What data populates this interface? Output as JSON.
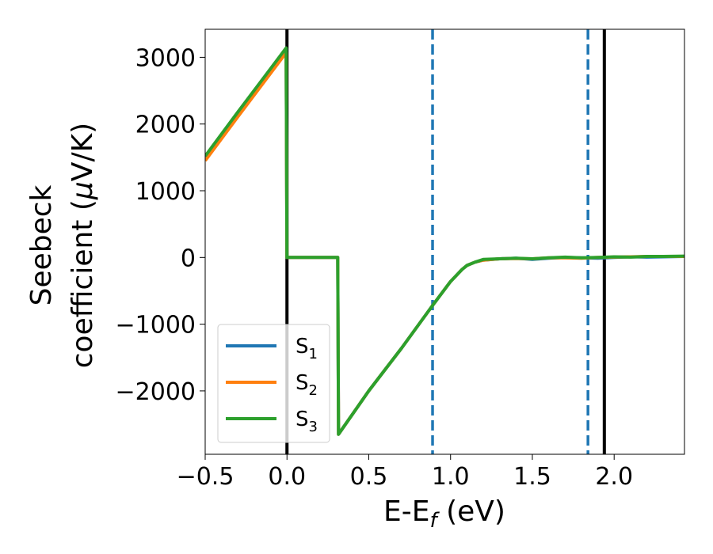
{
  "chart_data": {
    "type": "line",
    "xlabel": "E-E",
    "xlabel_sub": "f",
    "xlabel_unit": " (eV)",
    "ylabel_line1": "Seebeck",
    "ylabel_line2": "coefficient  (",
    "ylabel_mu": "μ",
    "ylabel_unit": "V/K)",
    "xlim": [
      -0.5,
      2.43
    ],
    "ylim": [
      -2950,
      3420
    ],
    "x_ticks": [
      -0.5,
      0.0,
      0.5,
      1.0,
      1.5,
      2.0
    ],
    "x_tick_labels": [
      "−0.5",
      "0.0",
      "0.5",
      "1.0",
      "1.5",
      "2.0"
    ],
    "y_ticks": [
      -2000,
      -1000,
      0,
      1000,
      2000,
      3000
    ],
    "y_tick_labels": [
      "−2000",
      "−1000",
      "0",
      "1000",
      "2000",
      "3000"
    ],
    "grid": false,
    "legend_position": "lower-left",
    "vertical_lines": [
      {
        "x": 0.0,
        "style": "solid",
        "color": "#000000"
      },
      {
        "x": 1.94,
        "style": "solid",
        "color": "#000000"
      },
      {
        "x": 0.89,
        "style": "dashed",
        "color": "#1f77b4"
      },
      {
        "x": 1.84,
        "style": "dashed",
        "color": "#1f77b4"
      }
    ],
    "series": [
      {
        "name": "S",
        "sub": "1",
        "color": "#1f77b4",
        "x": [
          -0.5,
          -0.3,
          -0.1,
          -0.005,
          0.0,
          0.31,
          0.315,
          0.5,
          0.7,
          0.89,
          1.0,
          1.07,
          1.1,
          1.15,
          1.2,
          1.3,
          1.4,
          1.5,
          1.6,
          1.7,
          1.8,
          1.9,
          2.0,
          2.1,
          2.2,
          2.3,
          2.43
        ],
        "y": [
          1510,
          2170,
          2820,
          3130,
          0,
          0,
          -2650,
          -2000,
          -1360,
          -720,
          -360,
          -180,
          -120,
          -70,
          -40,
          -20,
          -10,
          -30,
          -10,
          0,
          -5,
          -10,
          0,
          10,
          5,
          10,
          15
        ]
      },
      {
        "name": "S",
        "sub": "2",
        "color": "#ff7f0e",
        "x": [
          -0.5,
          -0.3,
          -0.1,
          -0.005,
          0.0,
          0.31,
          0.315,
          0.5,
          0.7,
          0.89,
          1.0,
          1.07,
          1.1,
          1.15,
          1.2,
          1.3,
          1.4,
          1.5,
          1.6,
          1.7,
          1.8,
          1.9,
          2.0,
          2.1,
          2.2,
          2.3,
          2.43
        ],
        "y": [
          1450,
          2110,
          2760,
          3070,
          0,
          0,
          -2650,
          -2000,
          -1360,
          -720,
          -360,
          -180,
          -120,
          -70,
          -40,
          -20,
          -15,
          -20,
          -5,
          -5,
          -10,
          0,
          5,
          10,
          15,
          15,
          15
        ]
      },
      {
        "name": "S",
        "sub": "3",
        "color": "#2ca02c",
        "x": [
          -0.5,
          -0.3,
          -0.1,
          -0.005,
          0.0,
          0.31,
          0.315,
          0.5,
          0.7,
          0.89,
          1.0,
          1.07,
          1.1,
          1.15,
          1.2,
          1.3,
          1.4,
          1.5,
          1.6,
          1.7,
          1.8,
          1.9,
          2.0,
          2.1,
          2.2,
          2.3,
          2.43
        ],
        "y": [
          1520,
          2180,
          2830,
          3140,
          0,
          0,
          -2650,
          -2000,
          -1360,
          -720,
          -360,
          -180,
          -120,
          -70,
          -30,
          -20,
          -10,
          -20,
          -5,
          5,
          -5,
          0,
          10,
          5,
          15,
          15,
          20
        ]
      }
    ]
  }
}
